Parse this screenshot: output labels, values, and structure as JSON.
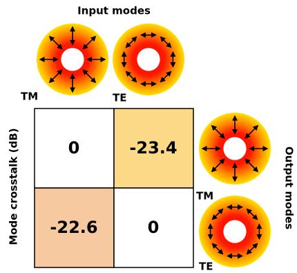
{
  "input_modes": {
    "title": "Input modes",
    "labels": [
      "TM",
      "TE"
    ]
  },
  "output_modes": {
    "title": "Output modes",
    "labels": [
      "TM",
      "TE"
    ]
  },
  "matrix": {
    "axis_label": "Mode crosstalk (dB)",
    "rows": [
      [
        0,
        -23.4
      ],
      [
        -22.6,
        0
      ]
    ]
  }
}
